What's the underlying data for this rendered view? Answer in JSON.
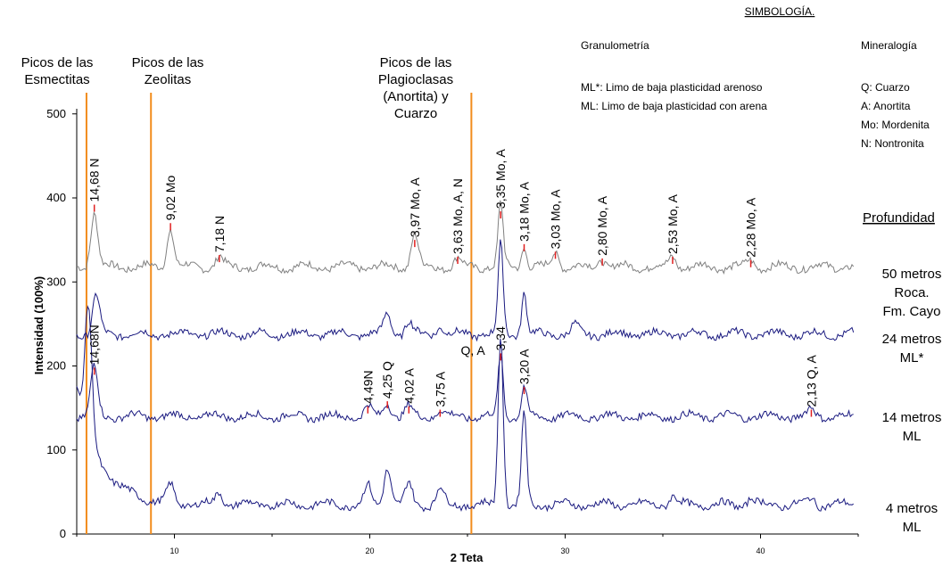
{
  "chart_data": {
    "type": "line",
    "xlabel": "2 Teta",
    "ylabel": "Intensidad (100%)",
    "xlim": [
      5,
      45
    ],
    "ylim": [
      0,
      520
    ],
    "x_ticks": [
      10,
      20,
      30,
      40
    ],
    "y_ticks": [
      0,
      100,
      200,
      300,
      400,
      500
    ],
    "grid": false,
    "legend_title": "SIMBOLOGÍA.",
    "granulometria": {
      "title": "Granulometría",
      "items": [
        "ML*: Limo de baja plasticidad arenoso",
        "ML: Limo de baja plasticidad con arena"
      ]
    },
    "mineralogia": {
      "title": "Mineralogía",
      "items": [
        "Q: Cuarzo",
        "A: Anortita",
        "Mo: Mordenita",
        "N: Nontronita"
      ]
    },
    "depth_title": "Profundidad",
    "series": [
      {
        "label_lines": [
          "50 metros",
          "Roca.",
          "Fm. Cayo"
        ],
        "color": "#808080",
        "baseline": 318,
        "peaks": [
          [
            5.9,
            65
          ],
          [
            9.8,
            45
          ],
          [
            12.3,
            12
          ],
          [
            22.3,
            40
          ],
          [
            24.5,
            10
          ],
          [
            26.7,
            75
          ],
          [
            27.9,
            25
          ],
          [
            29.5,
            18
          ],
          [
            31.9,
            10
          ],
          [
            35.5,
            12
          ],
          [
            39.5,
            8
          ]
        ]
      },
      {
        "label_lines": [
          "24 metros",
          "ML*"
        ],
        "color": "#1a1a80",
        "baseline": 238,
        "peaks": [
          [
            6.0,
            45
          ],
          [
            20.9,
            25
          ],
          [
            22.0,
            15
          ],
          [
            23.6,
            10
          ],
          [
            26.7,
            107
          ],
          [
            27.9,
            50
          ],
          [
            30.5,
            10
          ]
        ]
      },
      {
        "label_lines": [
          "14 metros",
          "ML"
        ],
        "color": "#1a1a80",
        "baseline": 140,
        "peaks": [
          [
            5.9,
            60
          ],
          [
            19.9,
            12
          ],
          [
            20.9,
            18
          ],
          [
            22.0,
            12
          ],
          [
            23.6,
            8
          ],
          [
            26.7,
            75
          ],
          [
            27.9,
            35
          ],
          [
            42.6,
            8
          ]
        ]
      },
      {
        "label_lines": [
          "4 metros",
          "ML"
        ],
        "color": "#1a1a80",
        "baseline": 35,
        "peaks": [
          [
            5.6,
            150
          ],
          [
            9.8,
            20
          ],
          [
            12.3,
            15
          ],
          [
            19.9,
            22
          ],
          [
            20.9,
            45
          ],
          [
            22.0,
            25
          ],
          [
            23.6,
            20
          ],
          [
            26.7,
            205
          ],
          [
            27.9,
            110
          ],
          [
            35.5,
            10
          ],
          [
            39.5,
            8
          ],
          [
            42.6,
            8
          ]
        ]
      }
    ],
    "vertical_lines": [
      {
        "x": 5.5,
        "label_lines": [
          "Picos de las",
          "Esmectitas"
        ]
      },
      {
        "x": 8.8,
        "label_lines": [
          "Picos de las",
          "Zeolitas"
        ]
      },
      {
        "x": 25.2,
        "label_lines": [
          "Picos de las",
          "Plagioclasas",
          "(Anortita) y",
          "Cuarzo"
        ]
      }
    ],
    "peak_labels_50m": [
      {
        "x": 5.9,
        "y": 392,
        "text": "14,68 N"
      },
      {
        "x": 9.8,
        "y": 370,
        "text": "9,02 Mo"
      },
      {
        "x": 12.3,
        "y": 332,
        "text": "7,18 N"
      },
      {
        "x": 22.3,
        "y": 350,
        "text": "3,97 Mo, A"
      },
      {
        "x": 24.5,
        "y": 330,
        "text": "3,63 Mo, A, N"
      },
      {
        "x": 26.7,
        "y": 384,
        "text": "3,35 Mo, A"
      },
      {
        "x": 27.9,
        "y": 345,
        "text": "3,18 Mo, A"
      },
      {
        "x": 29.5,
        "y": 336,
        "text": "3,03 Mo, A"
      },
      {
        "x": 31.9,
        "y": 328,
        "text": "2,80 Mo, A"
      },
      {
        "x": 35.5,
        "y": 330,
        "text": "2,53 Mo, A"
      },
      {
        "x": 39.5,
        "y": 326,
        "text": "2,28 Mo, A"
      }
    ],
    "peak_labels_14m": [
      {
        "x": 5.9,
        "y": 198,
        "text": "14,68N"
      },
      {
        "x": 19.9,
        "y": 152,
        "text": "4,49N"
      },
      {
        "x": 20.9,
        "y": 158,
        "text": "4,25 Q"
      },
      {
        "x": 22.0,
        "y": 152,
        "text": "4,02 A"
      },
      {
        "x": 23.6,
        "y": 148,
        "text": "3,75 A"
      },
      {
        "x": 26.7,
        "y": 215,
        "text": "3,34"
      },
      {
        "x": 27.9,
        "y": 175,
        "text": "3,20 A"
      },
      {
        "x": 42.6,
        "y": 148,
        "text": "2,13 Q, A"
      }
    ],
    "extra_labels": [
      {
        "x": 25.9,
        "y": 222,
        "text": "Q, A"
      }
    ]
  }
}
